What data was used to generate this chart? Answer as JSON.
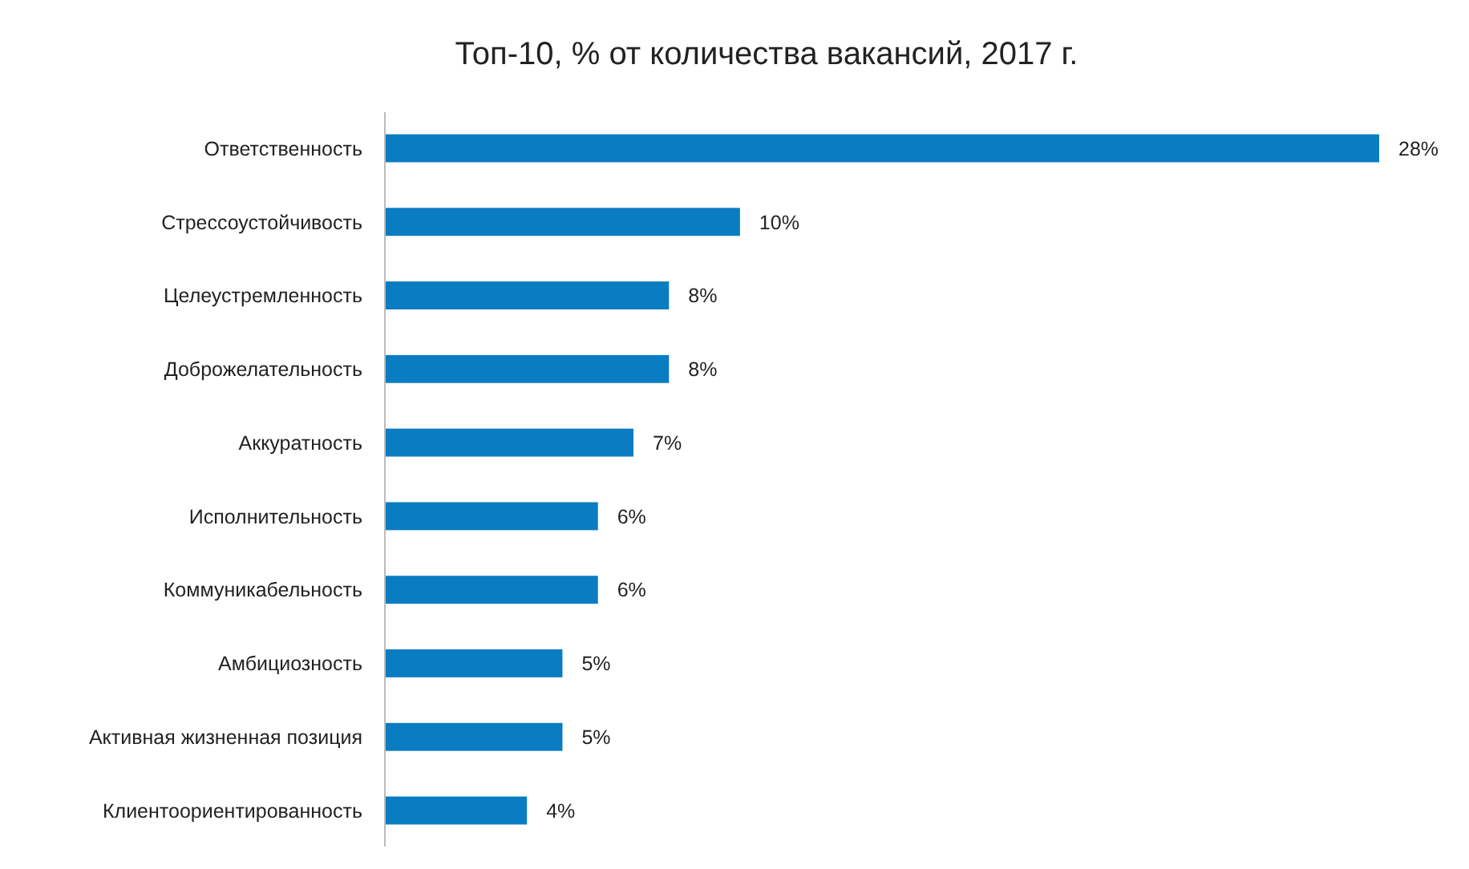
{
  "chart_data": {
    "type": "bar",
    "orientation": "horizontal",
    "title": "Топ-10, % от количества вакансий, 2017 г.",
    "categories": [
      "Ответственность",
      "Стрессоустойчивость",
      "Целеустремленность",
      "Доброжелательность",
      "Аккуратность",
      "Исполнительность",
      "Коммуникабельность",
      "Амбициозность",
      "Активная жизненная позиция",
      "Клиентоориентированность"
    ],
    "values": [
      28,
      10,
      8,
      8,
      7,
      6,
      6,
      5,
      5,
      4
    ],
    "value_labels": [
      "28%",
      "10%",
      "8%",
      "8%",
      "7%",
      "6%",
      "6%",
      "5%",
      "5%",
      "4%"
    ],
    "color": "#0a7cc1"
  }
}
